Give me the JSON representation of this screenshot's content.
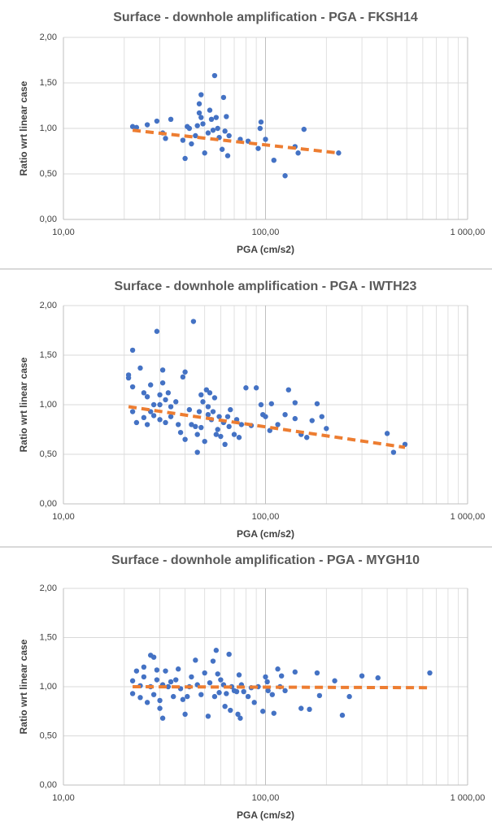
{
  "chart_data": [
    {
      "type": "scatter",
      "title": "Surface - downhole amplification - PGA  - FKSH14",
      "xlabel": "PGA (cm/s2)",
      "ylabel": "Ratio wrt linear case",
      "xscale": "log",
      "grid": true,
      "xlim": [
        10,
        1000
      ],
      "xticks": [
        {
          "value": 10,
          "label": "10,00"
        },
        {
          "value": 100,
          "label": "100,00"
        },
        {
          "value": 1000,
          "label": "1 000,00"
        }
      ],
      "ylim": [
        0,
        2
      ],
      "yticks": [
        {
          "value": 0,
          "label": "0,00"
        },
        {
          "value": 0.5,
          "label": "0,50"
        },
        {
          "value": 1,
          "label": "1,00"
        },
        {
          "value": 1.5,
          "label": "1,50"
        },
        {
          "value": 2,
          "label": "2,00"
        }
      ],
      "series": [
        {
          "style": "marker",
          "color": "#4472c4",
          "x": [
            22,
            23,
            26,
            29,
            31,
            32,
            34,
            39,
            40,
            41,
            42,
            43,
            45,
            46,
            47,
            47,
            48,
            48,
            49,
            50,
            52,
            53,
            54,
            55,
            56,
            57,
            58,
            59,
            61,
            62,
            63,
            64,
            65,
            66,
            75,
            82,
            92,
            94,
            95,
            100,
            110,
            125,
            140,
            145,
            155,
            230
          ],
          "values": [
            1.02,
            1.01,
            1.04,
            1.08,
            0.95,
            0.89,
            1.1,
            0.87,
            0.67,
            1.02,
            1.0,
            0.83,
            0.92,
            1.03,
            1.17,
            1.27,
            1.37,
            1.12,
            1.05,
            0.73,
            0.95,
            1.2,
            1.1,
            0.98,
            1.58,
            1.12,
            1.0,
            0.9,
            0.77,
            1.34,
            0.97,
            1.13,
            0.7,
            0.92,
            0.88,
            0.86,
            0.78,
            1.0,
            1.07,
            0.88,
            0.65,
            0.48,
            0.8,
            0.73,
            0.99,
            0.73
          ]
        },
        {
          "style": "dashed-line",
          "color": "#ed7d31",
          "x": [
            22,
            230
          ],
          "values": [
            0.98,
            0.73
          ]
        }
      ]
    },
    {
      "type": "scatter",
      "title": "Surface - downhole amplification - PGA - IWTH23",
      "xlabel": "PGA (cm/s2)",
      "ylabel": "Ratio wrt linear case",
      "xscale": "log",
      "grid": true,
      "xlim": [
        10,
        1000
      ],
      "xticks": [
        {
          "value": 10,
          "label": "10,00"
        },
        {
          "value": 100,
          "label": "100,00"
        },
        {
          "value": 1000,
          "label": "1 000,00"
        }
      ],
      "ylim": [
        0,
        2
      ],
      "yticks": [
        {
          "value": 0,
          "label": "0,00"
        },
        {
          "value": 0.5,
          "label": "0,50"
        },
        {
          "value": 1,
          "label": "1,00"
        },
        {
          "value": 1.5,
          "label": "1,50"
        },
        {
          "value": 2,
          "label": "2,00"
        }
      ],
      "series": [
        {
          "style": "marker",
          "color": "#4472c4",
          "x": [
            21,
            21,
            22,
            22,
            22,
            23,
            24,
            25,
            25,
            26,
            26,
            27,
            27,
            28,
            28,
            29,
            30,
            30,
            30,
            31,
            31,
            32,
            32,
            33,
            34,
            34,
            36,
            37,
            38,
            39,
            40,
            40,
            42,
            43,
            44,
            45,
            46,
            46,
            47,
            48,
            48,
            49,
            50,
            51,
            52,
            52,
            53,
            54,
            55,
            56,
            57,
            58,
            59,
            60,
            62,
            63,
            65,
            66,
            67,
            70,
            72,
            74,
            76,
            80,
            85,
            90,
            95,
            97,
            100,
            105,
            107,
            115,
            125,
            130,
            140,
            140,
            150,
            160,
            170,
            180,
            190,
            200,
            400,
            430,
            490
          ],
          "values": [
            1.3,
            1.27,
            1.55,
            1.18,
            0.93,
            0.82,
            1.37,
            1.12,
            0.87,
            1.08,
            0.8,
            1.2,
            0.93,
            1.0,
            0.89,
            1.74,
            1.1,
            1.0,
            0.85,
            1.35,
            1.22,
            1.05,
            0.82,
            1.12,
            0.98,
            0.88,
            1.03,
            0.8,
            0.72,
            1.28,
            1.33,
            0.65,
            0.95,
            0.8,
            1.84,
            0.78,
            0.7,
            0.52,
            0.93,
            1.1,
            0.77,
            1.03,
            0.63,
            1.15,
            0.98,
            0.9,
            1.12,
            0.85,
            0.93,
            1.07,
            0.7,
            0.75,
            0.88,
            0.68,
            0.82,
            0.6,
            0.88,
            0.78,
            0.95,
            0.7,
            0.85,
            0.67,
            0.8,
            1.17,
            0.79,
            1.17,
            1.0,
            0.9,
            0.88,
            0.74,
            1.01,
            0.8,
            0.9,
            1.15,
            1.02,
            0.86,
            0.7,
            0.67,
            0.84,
            1.01,
            0.88,
            0.76,
            0.71,
            0.52,
            0.6
          ]
        },
        {
          "style": "dashed-line",
          "color": "#ed7d31",
          "x": [
            21,
            490
          ],
          "values": [
            0.98,
            0.57
          ]
        }
      ]
    },
    {
      "type": "scatter",
      "title": "Surface - downhole amplification - PGA - MYGH10",
      "xlabel": "PGA (cm/s2)",
      "ylabel": "Ratio wrt linear case",
      "xscale": "log",
      "grid": true,
      "xlim": [
        10,
        1000
      ],
      "xticks": [
        {
          "value": 10,
          "label": "10,00"
        },
        {
          "value": 100,
          "label": "100,00"
        },
        {
          "value": 1000,
          "label": "1 000,00"
        }
      ],
      "ylim": [
        0,
        2
      ],
      "yticks": [
        {
          "value": 0,
          "label": "0,00"
        },
        {
          "value": 0.5,
          "label": "0,50"
        },
        {
          "value": 1,
          "label": "1,00"
        },
        {
          "value": 1.5,
          "label": "1,50"
        },
        {
          "value": 2,
          "label": "2,00"
        }
      ],
      "series": [
        {
          "style": "marker",
          "color": "#4472c4",
          "x": [
            22,
            22,
            23,
            24,
            24,
            25,
            25,
            26,
            27,
            27,
            28,
            28,
            29,
            29,
            30,
            30,
            31,
            31,
            32,
            33,
            34,
            35,
            36,
            37,
            38,
            39,
            40,
            41,
            42,
            43,
            45,
            46,
            48,
            50,
            52,
            53,
            55,
            56,
            57,
            58,
            59,
            60,
            62,
            63,
            64,
            66,
            67,
            68,
            70,
            72,
            73,
            74,
            75,
            76,
            78,
            82,
            85,
            88,
            92,
            97,
            100,
            102,
            103,
            108,
            110,
            115,
            118,
            120,
            125,
            140,
            150,
            165,
            180,
            185,
            220,
            240,
            260,
            300,
            360,
            650
          ],
          "values": [
            1.06,
            0.93,
            1.16,
            1.01,
            0.89,
            1.2,
            1.1,
            0.84,
            1.32,
            1.0,
            1.3,
            0.92,
            1.17,
            1.07,
            0.86,
            0.78,
            1.02,
            0.68,
            1.16,
            1.0,
            1.05,
            0.9,
            1.07,
            1.18,
            0.98,
            0.87,
            0.72,
            0.9,
            1.0,
            1.1,
            1.27,
            1.02,
            0.92,
            1.14,
            0.7,
            1.04,
            1.26,
            0.9,
            1.37,
            1.13,
            0.94,
            1.07,
            1.02,
            0.8,
            0.93,
            1.33,
            0.76,
            1.0,
            0.96,
            0.95,
            0.72,
            1.12,
            0.68,
            1.02,
            0.95,
            0.9,
            0.99,
            0.84,
            1.0,
            0.75,
            1.1,
            1.05,
            0.96,
            0.92,
            0.73,
            1.18,
            1.0,
            1.11,
            0.96,
            1.15,
            0.78,
            0.77,
            1.14,
            0.91,
            1.06,
            0.71,
            0.9,
            1.11,
            1.09,
            1.14
          ]
        },
        {
          "style": "dashed-line",
          "color": "#ed7d31",
          "x": [
            22,
            660
          ],
          "values": [
            1.0,
            0.99
          ]
        }
      ]
    }
  ]
}
